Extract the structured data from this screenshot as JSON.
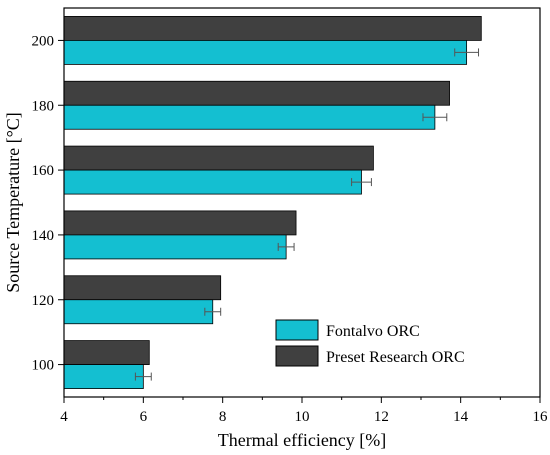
{
  "chart_data": {
    "type": "bar",
    "orientation": "horizontal",
    "categories": [
      "100",
      "120",
      "140",
      "160",
      "180",
      "200"
    ],
    "series": [
      {
        "name": "Fontalvo ORC",
        "color": "#14bfd1",
        "values": [
          6.0,
          7.75,
          9.6,
          11.5,
          13.35,
          14.15
        ],
        "error": [
          0.2,
          0.2,
          0.2,
          0.25,
          0.3,
          0.3
        ]
      },
      {
        "name": "Preset Research ORC",
        "color": "#404040",
        "values": [
          6.15,
          7.95,
          9.85,
          11.8,
          13.72,
          14.52
        ]
      }
    ],
    "xlabel": "Thermal efficiency [%]",
    "ylabel": "Source Temperature [°C]",
    "xlim": [
      4,
      16
    ],
    "xticks": [
      "4",
      "6",
      "8",
      "10",
      "12",
      "14",
      "16"
    ],
    "legend_position": "bottom-right",
    "grid": false
  }
}
